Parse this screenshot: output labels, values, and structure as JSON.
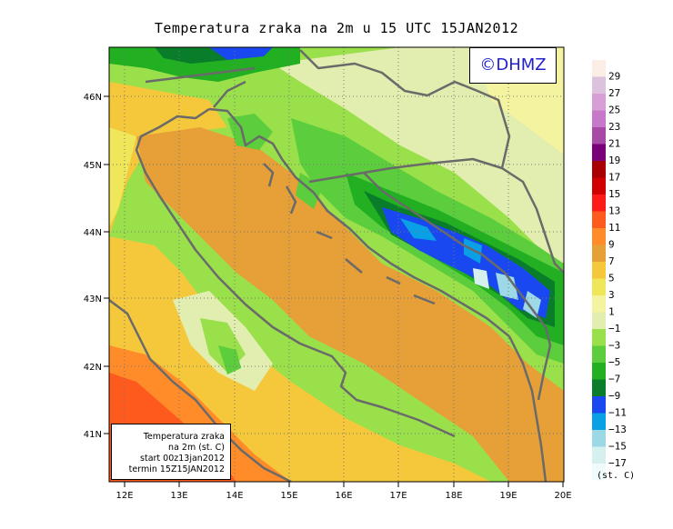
{
  "title": "Temperatura zraka na 2m u 15 UTC 15JAN2012",
  "logo_text": "©DHMZ",
  "info_box": {
    "line1": "Temperatura zraka",
    "line2": "na 2m (st. C)",
    "line3": "start 00z13jan2012",
    "line4": "termin 15Z15JAN2012"
  },
  "lat_labels": [
    "46N",
    "45N",
    "44N",
    "43N",
    "42N",
    "41N"
  ],
  "lon_labels": [
    "12E",
    "13E",
    "14E",
    "15E",
    "16E",
    "17E",
    "18E",
    "19E",
    "20E"
  ],
  "legend": {
    "units": "(st. C)",
    "labels": [
      "29",
      "27",
      "25",
      "23",
      "21",
      "19",
      "17",
      "15",
      "13",
      "11",
      "9",
      "7",
      "5",
      "3",
      "1",
      "−1",
      "−3",
      "−5",
      "−7",
      "−9",
      "−11",
      "−13",
      "−15",
      "−17"
    ],
    "colors": [
      "#fbeee6",
      "#ddc2dd",
      "#d6a0d6",
      "#c878c8",
      "#a64aa6",
      "#7a007a",
      "#a80000",
      "#d00000",
      "#ff1a1a",
      "#ff5a1e",
      "#ff8c28",
      "#e6a037",
      "#f5c83c",
      "#f0e65a",
      "#f3f3a0",
      "#e2eeb0",
      "#9ae04a",
      "#5ccd3c",
      "#22b022",
      "#0a7d2a",
      "#1a48f0",
      "#0aa0e6",
      "#9cd8e6",
      "#d6f0f0",
      "#f0fcfc"
    ]
  },
  "colors": {
    "coast": "#6a6a6a",
    "sea_warm": "#e6a037",
    "sea_hot": "#ff5a1e",
    "lowland": "#5ccd3c",
    "mountain_cold": "#1a48f0"
  }
}
